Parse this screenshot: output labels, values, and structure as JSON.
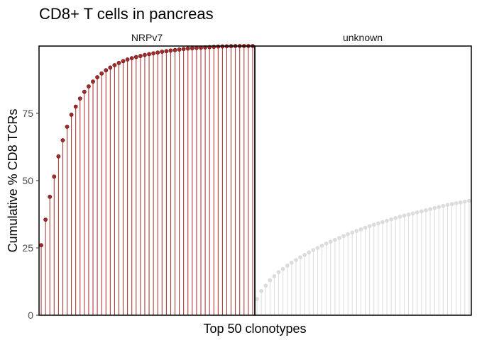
{
  "chart_data": {
    "type": "lollipop",
    "title": "CD8+ T cells in pancreas",
    "xlabel": "Top 50 clonotypes",
    "ylabel": "Cumulative % CD8 TCRs",
    "ylim": [
      0,
      100
    ],
    "yticks": [
      0,
      25,
      50,
      75
    ],
    "grid": false,
    "panels": [
      {
        "label": "NRPv7",
        "color": "#a52a2a",
        "stroke": "#5a1212",
        "values": [
          26,
          35.5,
          44,
          51.5,
          59,
          65,
          70,
          74.5,
          77.5,
          80.5,
          83,
          85,
          86.8,
          88.4,
          89.8,
          91,
          92,
          92.9,
          93.7,
          94.4,
          95,
          95.5,
          95.9,
          96.3,
          96.7,
          97,
          97.3,
          97.6,
          97.9,
          98.1,
          98.3,
          98.5,
          98.7,
          98.9,
          99.1,
          99.2,
          99.3,
          99.4,
          99.5,
          99.6,
          99.7,
          99.8,
          99.85,
          99.9,
          99.95,
          100,
          100,
          100,
          100,
          100
        ]
      },
      {
        "label": "unknown",
        "color": "#dcdcdc",
        "stroke": "#dcdcdc",
        "values": [
          6,
          9,
          11,
          13,
          14.5,
          16,
          17.2,
          18.4,
          19.5,
          20.5,
          21.5,
          22.4,
          23.3,
          24.2,
          25,
          25.8,
          26.6,
          27.3,
          28,
          28.7,
          29.4,
          30.1,
          30.7,
          31.3,
          31.9,
          32.5,
          33.1,
          33.6,
          34.1,
          34.6,
          35.1,
          35.6,
          36.1,
          36.6,
          37,
          37.4,
          37.8,
          38.2,
          38.6,
          39,
          39.4,
          39.8,
          40.2,
          40.6,
          41,
          41.3,
          41.6,
          41.9,
          42.2,
          42.5
        ]
      }
    ]
  }
}
